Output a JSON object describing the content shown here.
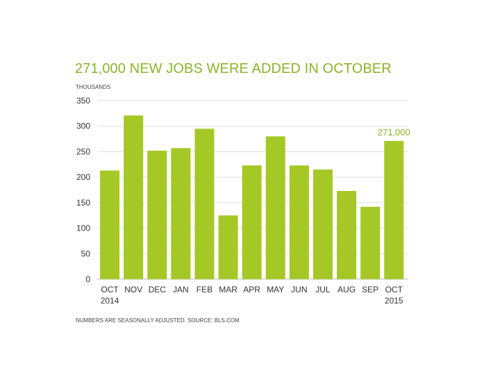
{
  "colors": {
    "accent": "#8db32a",
    "bar": "#a5c826",
    "grid": "#dddddd",
    "text": "#333333"
  },
  "chart_data": {
    "type": "bar",
    "title": "271,000 NEW JOBS WERE ADDED IN OCTOBER",
    "unit_label": "THOUSANDS",
    "source_note": "NUMBERS ARE SEASONALLY ADJUSTED. SOURCE: BLS.COM",
    "categories": [
      "OCT",
      "NOV",
      "DEC",
      "JAN",
      "FEB",
      "MAR",
      "APR",
      "MAY",
      "JUN",
      "JUL",
      "AUG",
      "SEP",
      "OCT"
    ],
    "category_sublabels": [
      "2014",
      "",
      "",
      "",
      "",
      "",
      "",
      "",
      "",
      "",
      "",
      "",
      "2015"
    ],
    "values": [
      213,
      321,
      252,
      257,
      295,
      125,
      223,
      280,
      223,
      215,
      173,
      142,
      271
    ],
    "y_ticks": [
      0,
      50,
      100,
      150,
      200,
      250,
      300,
      350
    ],
    "ylim": [
      0,
      350
    ],
    "grid": true,
    "annotation": {
      "category_index": 12,
      "text": "271,000"
    }
  }
}
